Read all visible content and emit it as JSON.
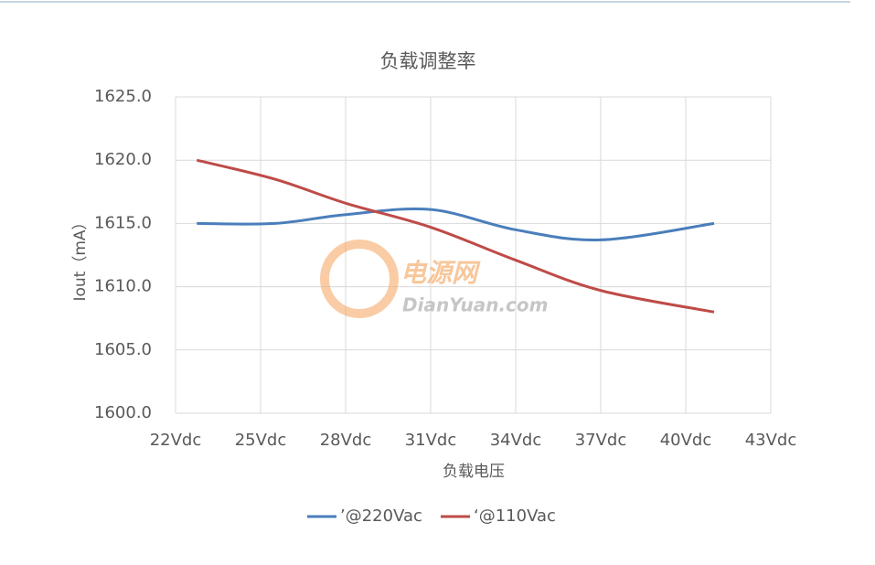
{
  "chart_data": {
    "type": "line",
    "title": "负载调整率",
    "x_label": "负载电压",
    "y_label": "Iout（mA）",
    "x": [
      22.75,
      25.5,
      28,
      31,
      34,
      37,
      41
    ],
    "series": [
      {
        "name": "’@220Vac",
        "color": "#4a7ebb",
        "values": [
          1615,
          1615,
          1615.7,
          1616.1,
          1614.5,
          1613.7,
          1615
        ]
      },
      {
        "name": "‘@110Vac",
        "color": "#be4b48",
        "values": [
          1620,
          1618.5,
          1616.6,
          1614.7,
          1612.1,
          1609.7,
          1608
        ]
      }
    ],
    "xlim": [
      22,
      43
    ],
    "xticks": [
      {
        "value": 22,
        "label": "22Vdc"
      },
      {
        "value": 25,
        "label": "25Vdc"
      },
      {
        "value": 28,
        "label": "28Vdc"
      },
      {
        "value": 31,
        "label": "31Vdc"
      },
      {
        "value": 34,
        "label": "34Vdc"
      },
      {
        "value": 37,
        "label": "37Vdc"
      },
      {
        "value": 40,
        "label": "40Vdc"
      },
      {
        "value": 43,
        "label": "43Vdc"
      }
    ],
    "ylim": [
      1600,
      1625
    ],
    "yticks": [
      {
        "value": 1600,
        "label": "1600.0"
      },
      {
        "value": 1605,
        "label": "1605.0"
      },
      {
        "value": 1610,
        "label": "1610.0"
      },
      {
        "value": 1615,
        "label": "1615.0"
      },
      {
        "value": 1620,
        "label": "1620.0"
      },
      {
        "value": 1625,
        "label": "1625.0"
      }
    ],
    "grid": true,
    "legend": "bottom",
    "watermark": [
      "电源网",
      "DianYuan.com"
    ]
  }
}
